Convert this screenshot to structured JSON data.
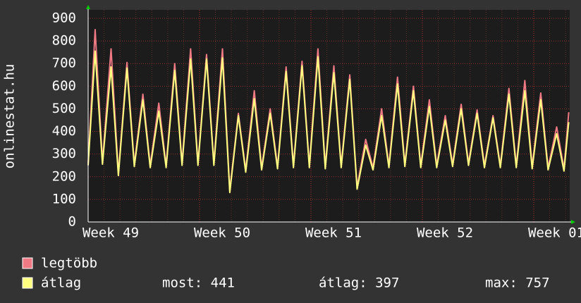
{
  "chart_data": {
    "type": "line",
    "y_label": "onlinestat.hu",
    "xlim": [
      0,
      30.26
    ],
    "xticks": [
      {
        "value": 0,
        "label": "Week 49"
      },
      {
        "value": 7,
        "label": "Week 50"
      },
      {
        "value": 14,
        "label": "Week 51"
      },
      {
        "value": 21,
        "label": "Week 52"
      },
      {
        "value": 28,
        "label": "Week 01"
      }
    ],
    "ylim": [
      0,
      900
    ],
    "yticks": [
      0,
      100,
      200,
      300,
      400,
      500,
      600,
      700,
      800,
      900
    ],
    "grid": true,
    "x": [
      0,
      0.44,
      0.9,
      1.44,
      1.9,
      2.44,
      2.9,
      3.44,
      3.9,
      4.44,
      4.9,
      5.44,
      5.9,
      6.44,
      6.9,
      7.44,
      7.9,
      8.44,
      8.9,
      9.44,
      9.9,
      10.44,
      10.9,
      11.44,
      11.9,
      12.44,
      12.9,
      13.44,
      13.9,
      14.44,
      14.9,
      15.44,
      15.9,
      16.44,
      16.9,
      17.44,
      17.9,
      18.44,
      18.9,
      19.44,
      19.9,
      20.44,
      20.9,
      21.44,
      21.9,
      22.44,
      22.9,
      23.44,
      23.9,
      24.44,
      24.9,
      25.44,
      25.9,
      26.44,
      26.9,
      27.44,
      27.9,
      28.44,
      28.9,
      29.44,
      29.9,
      30.2
    ],
    "series": [
      {
        "name": "legtöbb",
        "color": "#f07a84",
        "values": [
          260,
          850,
          265,
          765,
          215,
          705,
          255,
          565,
          250,
          525,
          250,
          700,
          260,
          765,
          260,
          740,
          260,
          765,
          140,
          480,
          230,
          580,
          240,
          500,
          245,
          685,
          250,
          710,
          250,
          765,
          245,
          690,
          250,
          650,
          155,
          365,
          240,
          500,
          250,
          640,
          255,
          600,
          250,
          540,
          250,
          470,
          255,
          520,
          260,
          495,
          250,
          470,
          250,
          590,
          250,
          625,
          245,
          570,
          240,
          420,
          235,
          485
        ]
      },
      {
        "name": "átlag",
        "color": "#ffff80",
        "values": [
          250,
          755,
          255,
          685,
          205,
          680,
          245,
          540,
          240,
          490,
          240,
          670,
          250,
          720,
          250,
          720,
          250,
          725,
          130,
          470,
          220,
          545,
          230,
          480,
          235,
          665,
          240,
          690,
          240,
          730,
          235,
          660,
          240,
          630,
          145,
          340,
          230,
          470,
          240,
          610,
          245,
          580,
          240,
          510,
          240,
          450,
          245,
          500,
          250,
          480,
          240,
          460,
          240,
          565,
          240,
          580,
          235,
          540,
          230,
          390,
          225,
          441
        ]
      }
    ],
    "stats": [
      "most: 441",
      "átlag: 397",
      "max: 757"
    ]
  }
}
